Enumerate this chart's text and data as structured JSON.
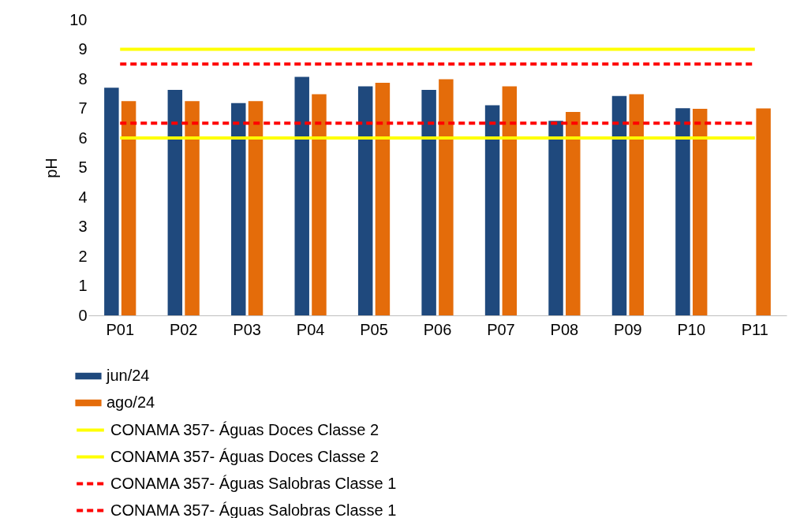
{
  "chart_data": {
    "type": "bar",
    "ylabel": "pH",
    "categories": [
      "P01",
      "P02",
      "P03",
      "P04",
      "P05",
      "P06",
      "P07",
      "P08",
      "P09",
      "P10",
      "P11"
    ],
    "series": [
      {
        "name": "jun/24",
        "color": "#1f497d",
        "values": [
          7.7,
          7.63,
          7.18,
          8.07,
          7.75,
          7.63,
          7.11,
          6.58,
          7.42,
          7.01,
          null
        ]
      },
      {
        "name": "ago/24",
        "color": "#e46c0a",
        "values": [
          7.25,
          7.25,
          7.25,
          7.48,
          7.87,
          7.99,
          7.75,
          6.88,
          7.48,
          6.99,
          7.0
        ]
      },
      {
        "name": "CONAMA 357- Águas Doces Classe 2",
        "type": "line",
        "color": "#ffff00",
        "line_style": "solid",
        "values": [
          9,
          9,
          9,
          9,
          9,
          9,
          9,
          9,
          9,
          9,
          9
        ]
      },
      {
        "name": "CONAMA 357- Águas Doces Classe 2",
        "type": "line",
        "color": "#ffff00",
        "line_style": "solid",
        "values": [
          6,
          6,
          6,
          6,
          6,
          6,
          6,
          6,
          6,
          6,
          6
        ]
      },
      {
        "name": "CONAMA 357- Águas Salobras Classe 1",
        "type": "line",
        "color": "#ff0000",
        "line_style": "dashed",
        "values": [
          8.5,
          8.5,
          8.5,
          8.5,
          8.5,
          8.5,
          8.5,
          8.5,
          8.5,
          8.5,
          8.5
        ]
      },
      {
        "name": "CONAMA 357- Águas Salobras Classe 1",
        "type": "line",
        "color": "#ff0000",
        "line_style": "dashed",
        "values": [
          6.5,
          6.5,
          6.5,
          6.5,
          6.5,
          6.5,
          6.5,
          6.5,
          6.5,
          6.5,
          6.5
        ]
      }
    ],
    "ylim": [
      0,
      10
    ],
    "yticks": [
      0,
      1,
      2,
      3,
      4,
      5,
      6,
      7,
      8,
      9,
      10
    ],
    "grid": false,
    "legend": "bottom"
  }
}
